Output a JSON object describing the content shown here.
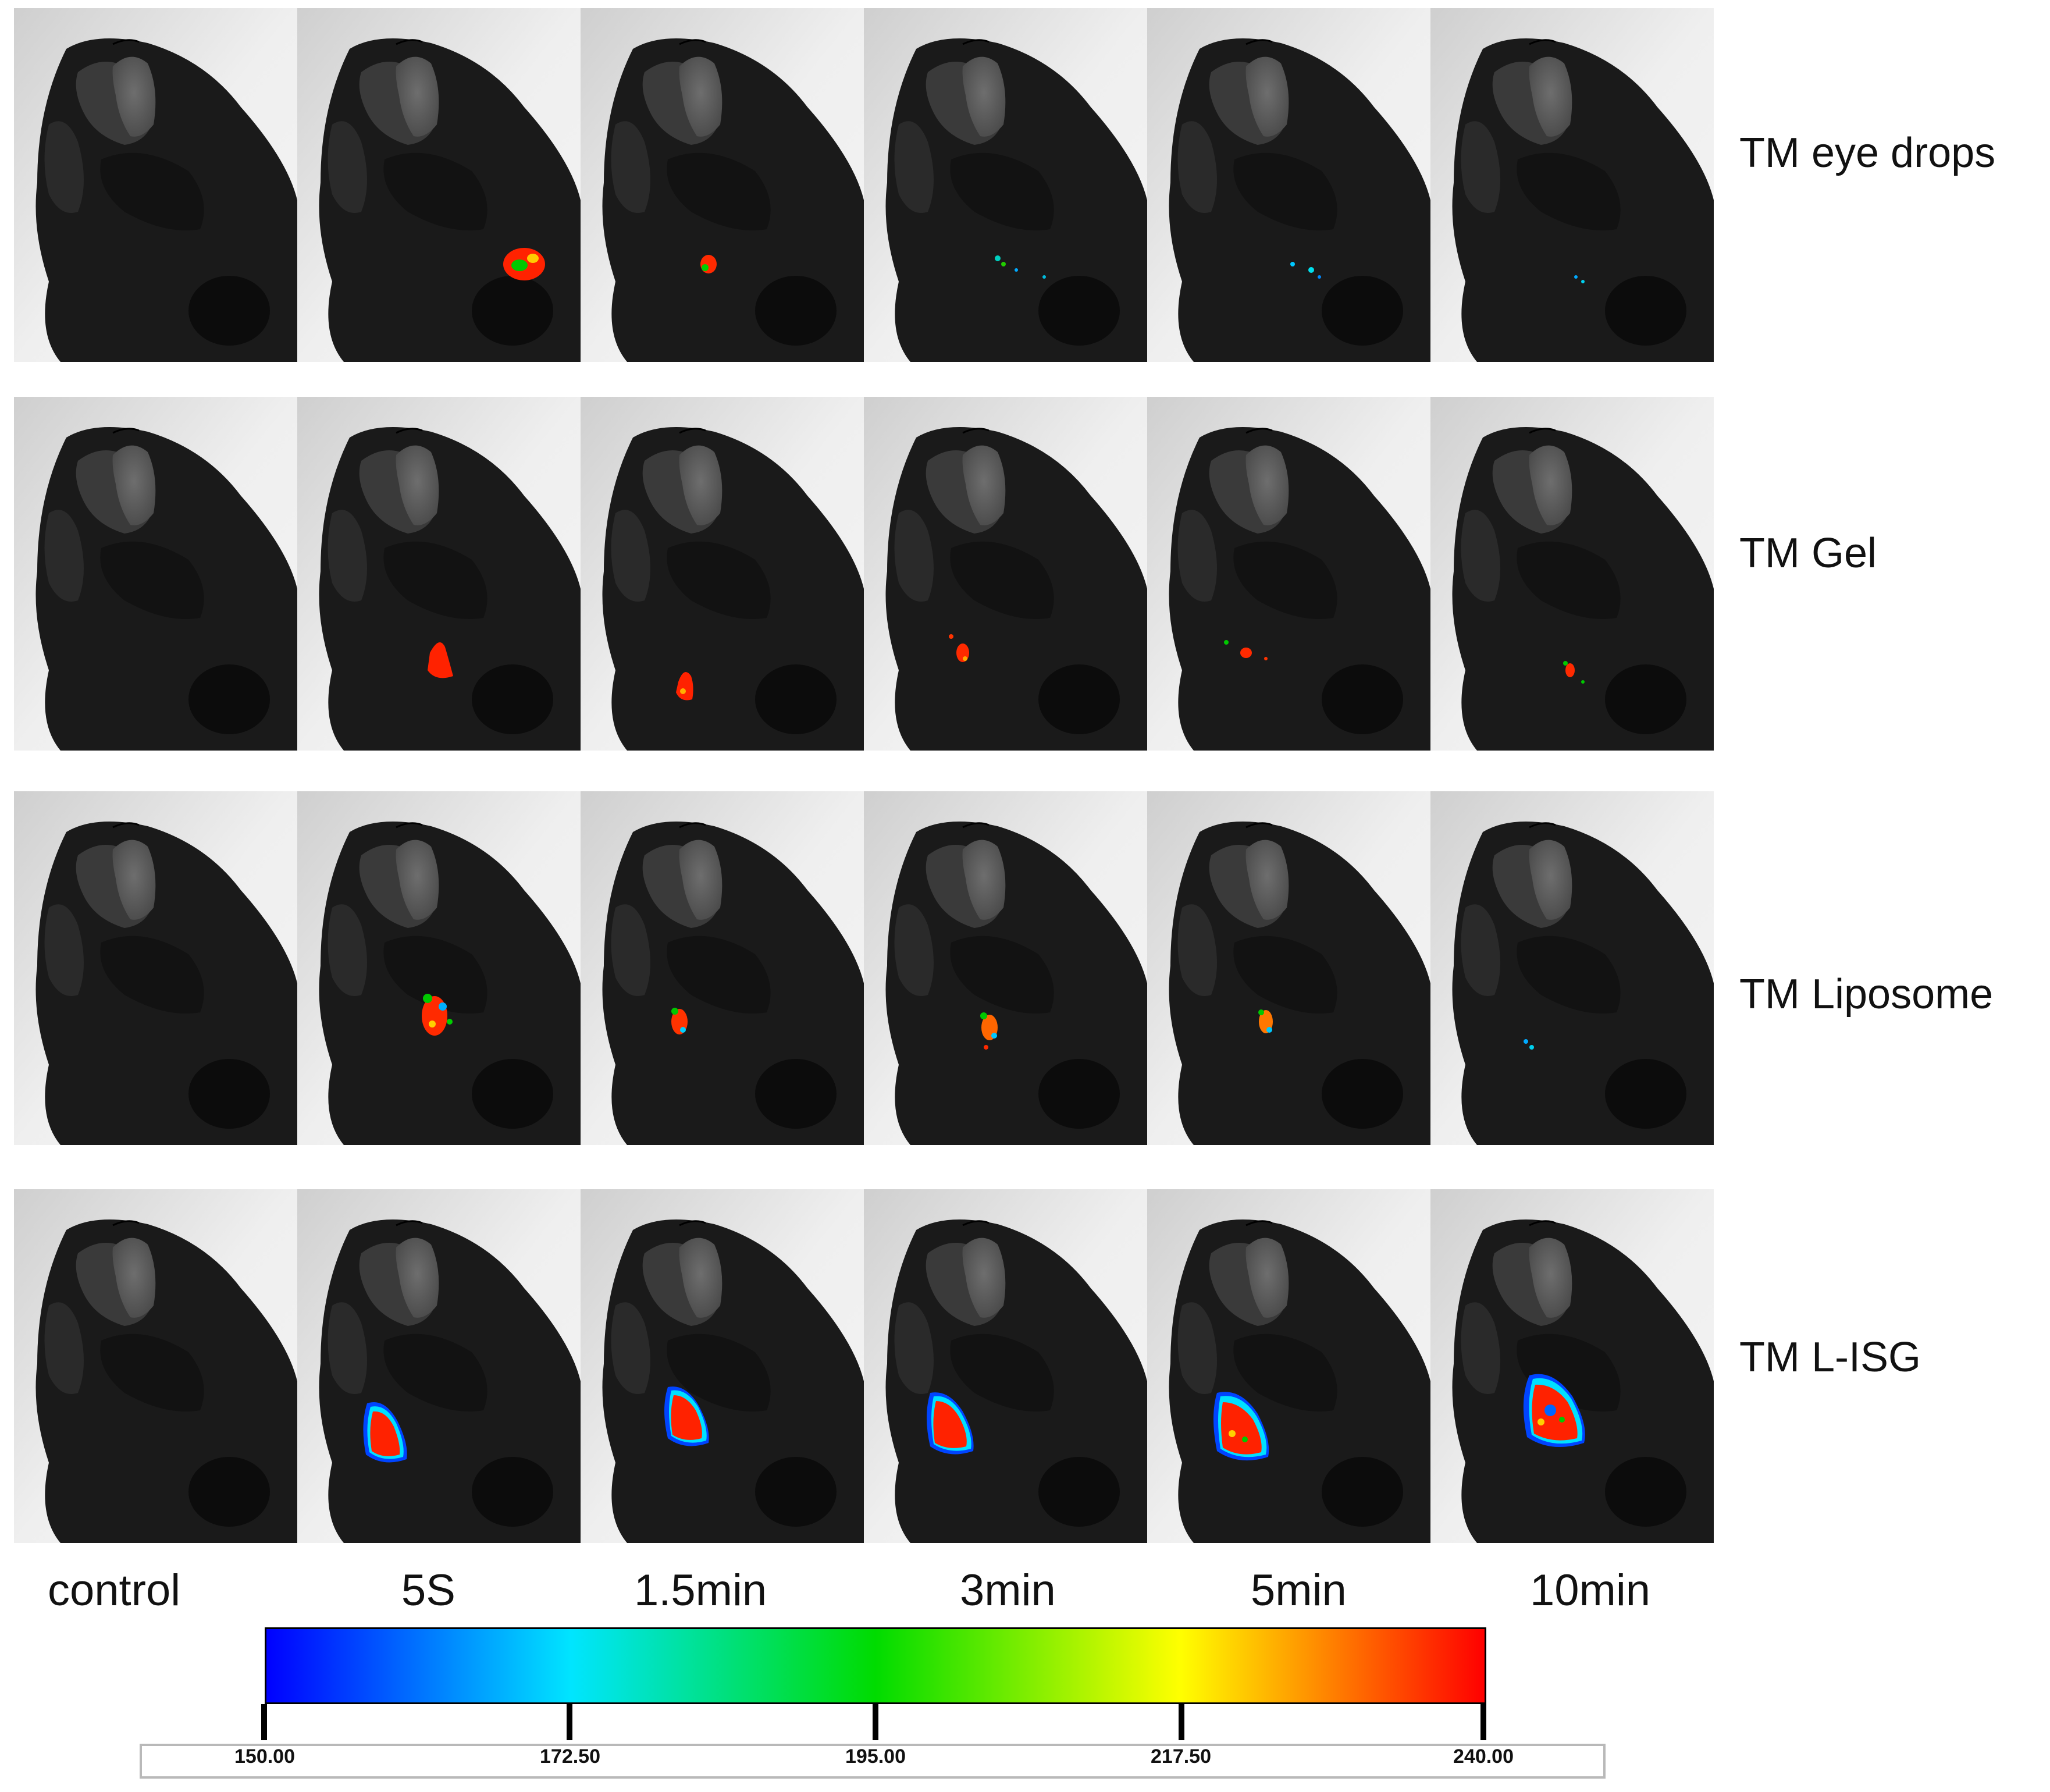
{
  "figure": {
    "row_labels": [
      "TM eye drops",
      "TM Gel",
      "TM Liposome",
      "TM L-ISG"
    ],
    "column_labels": [
      "control",
      "5S",
      "1.5min",
      "3min",
      "5min",
      "10min"
    ],
    "colorbar": {
      "ticks": [
        "150.00",
        "172.50",
        "195.00",
        "217.50",
        "240.00"
      ],
      "colors": [
        "#0000ff",
        "#00e5ff",
        "#00dc00",
        "#ffff00",
        "#ff0000"
      ]
    }
  }
}
